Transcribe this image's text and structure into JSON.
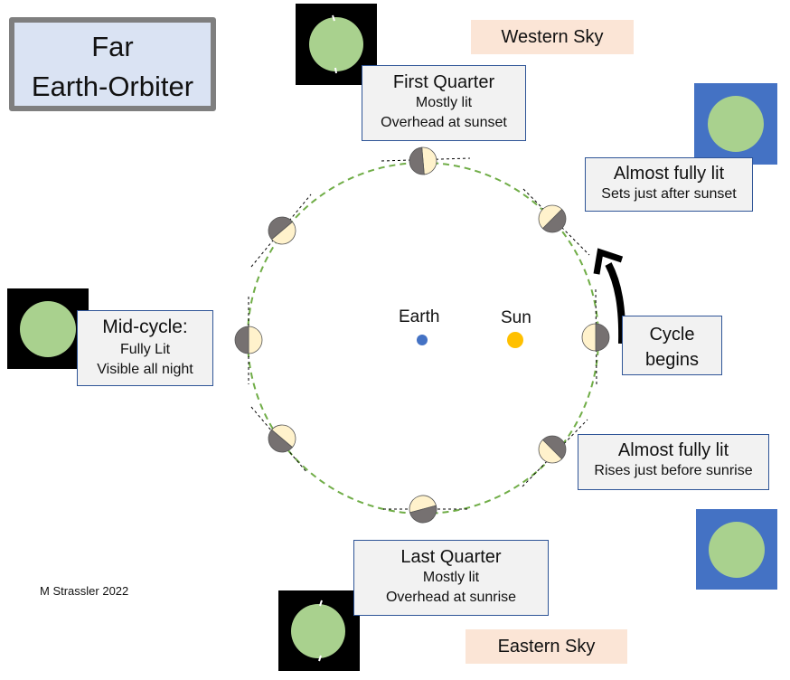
{
  "title": {
    "line1": "Far",
    "line2": "Earth-Orbiter"
  },
  "sky": {
    "western": "Western Sky",
    "eastern": "Eastern Sky"
  },
  "labels": {
    "first_quarter": {
      "main": "First Quarter",
      "sub1": "Mostly lit",
      "sub2": "Overhead at sunset"
    },
    "almost_full_top": {
      "main": "Almost fully lit",
      "sub1": "Sets just after sunset"
    },
    "mid_cycle": {
      "main": "Mid-cycle:",
      "sub1": "Fully Lit",
      "sub2": "Visible all night"
    },
    "cycle_begins": {
      "line1": "Cycle",
      "line2": "begins"
    },
    "almost_full_bottom": {
      "main": "Almost fully lit",
      "sub1": "Rises just before sunrise"
    },
    "last_quarter": {
      "main": "Last Quarter",
      "sub1": "Mostly lit",
      "sub2": "Overhead at sunrise"
    }
  },
  "bodies": {
    "earth": "Earth",
    "sun": "Sun"
  },
  "credit": "M Strassler 2022",
  "colors": {
    "orbit": "#70ad47",
    "lit": "#fff2cc",
    "dark": "#767171",
    "earth": "#4472c4",
    "sun": "#ffc000",
    "thumb_disc": "#a9d18e",
    "thumb_night": "#000000",
    "thumb_day": "#4472c4"
  }
}
